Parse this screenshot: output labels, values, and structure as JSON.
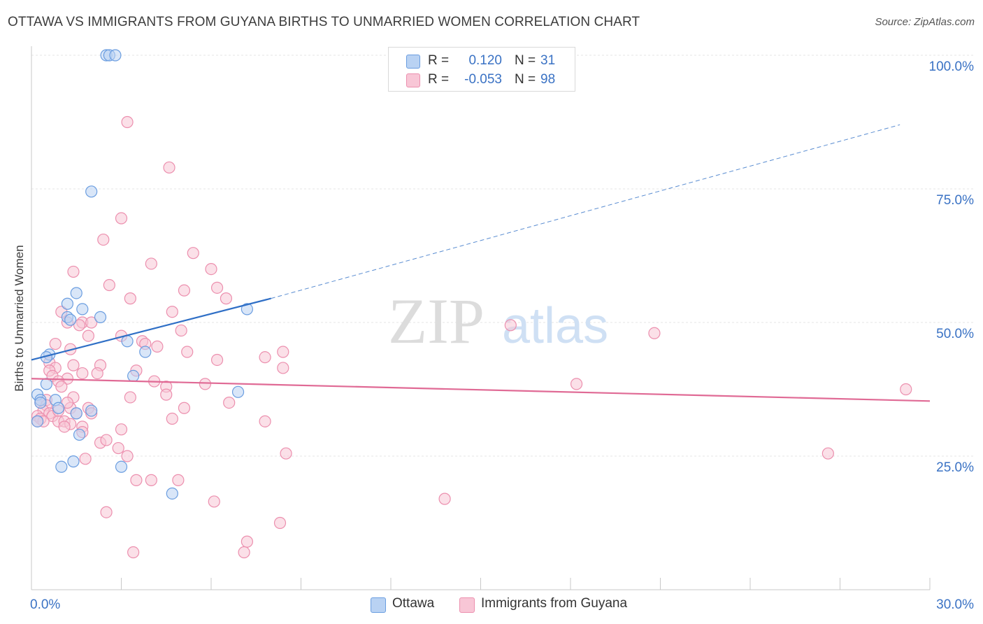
{
  "chart_title": "OTTAWA VS IMMIGRANTS FROM GUYANA BIRTHS TO UNMARRIED WOMEN CORRELATION CHART",
  "source_text": "Source: ZipAtlas.com",
  "watermark": "ZIPatlas",
  "legend_top": {
    "rows": [
      {
        "r_label": "R =",
        "r_value": "0.120",
        "n_label": "N =",
        "n_value": "31"
      },
      {
        "r_label": "R =",
        "r_value": "-0.053",
        "n_label": "N =",
        "n_value": "98"
      }
    ]
  },
  "legend_bottom": [
    "Ottawa",
    "Immigrants from Guyana"
  ],
  "colors": {
    "ottawa_fill": "#b9d2f3",
    "ottawa_stroke": "#6a9de0",
    "ottawa_line": "#2f6fc6",
    "guyana_fill": "#f8c6d6",
    "guyana_stroke": "#ec8fae",
    "guyana_line": "#e06a95",
    "tick_label": "#3a72c4",
    "grid": "#e4e4e4"
  },
  "chart_data": {
    "type": "scatter",
    "title": "OTTAWA VS IMMIGRANTS FROM GUYANA BIRTHS TO UNMARRIED WOMEN CORRELATION CHART",
    "xlabel": "",
    "ylabel": "Births to Unmarried Women",
    "xlim": [
      0,
      30
    ],
    "ylim": [
      0,
      100
    ],
    "x_tick_labels": [
      "0.0%",
      "30.0%"
    ],
    "y_ticks": [
      25,
      50,
      75,
      100
    ],
    "y_tick_labels": [
      "25.0%",
      "50.0%",
      "75.0%",
      "100.0%"
    ],
    "grid": true,
    "legend_position": "top-center",
    "series": [
      {
        "name": "Ottawa",
        "R": 0.12,
        "N": 31,
        "trend": {
          "x0": 0,
          "y0": 43.0,
          "x1": 8.0,
          "y1": 54.5,
          "dashed_to_x": 29.0,
          "dashed_to_y": 87.0
        },
        "points": [
          [
            2.5,
            100
          ],
          [
            2.6,
            100
          ],
          [
            2.8,
            100
          ],
          [
            2.0,
            74.5
          ],
          [
            1.5,
            55.5
          ],
          [
            1.2,
            53.5
          ],
          [
            1.7,
            52.5
          ],
          [
            1.2,
            51.0
          ],
          [
            1.3,
            50.5
          ],
          [
            2.3,
            51.0
          ],
          [
            3.2,
            46.5
          ],
          [
            3.8,
            44.5
          ],
          [
            0.6,
            44.0
          ],
          [
            0.5,
            43.5
          ],
          [
            3.4,
            40.0
          ],
          [
            0.5,
            38.5
          ],
          [
            7.2,
            52.5
          ],
          [
            6.9,
            37.0
          ],
          [
            0.2,
            36.5
          ],
          [
            0.3,
            35.5
          ],
          [
            0.8,
            35.5
          ],
          [
            0.3,
            35.0
          ],
          [
            0.9,
            34.0
          ],
          [
            1.5,
            33.0
          ],
          [
            2.0,
            33.5
          ],
          [
            0.2,
            31.5
          ],
          [
            1.6,
            29.0
          ],
          [
            1.4,
            24.0
          ],
          [
            1.0,
            23.0
          ],
          [
            3.0,
            23.0
          ],
          [
            4.7,
            18.0
          ]
        ]
      },
      {
        "name": "Immigrants from Guyana",
        "R": -0.053,
        "N": 98,
        "trend": {
          "x0": 0,
          "y0": 39.5,
          "x1": 30,
          "y1": 35.3
        },
        "points": [
          [
            3.2,
            87.5
          ],
          [
            4.6,
            79.0
          ],
          [
            3.0,
            69.5
          ],
          [
            2.4,
            65.5
          ],
          [
            5.4,
            63.0
          ],
          [
            4.0,
            61.0
          ],
          [
            6.0,
            60.0
          ],
          [
            1.4,
            59.5
          ],
          [
            2.6,
            57.0
          ],
          [
            5.1,
            56.0
          ],
          [
            6.2,
            56.5
          ],
          [
            3.3,
            54.5
          ],
          [
            6.5,
            54.5
          ],
          [
            1.0,
            52.0
          ],
          [
            4.7,
            52.0
          ],
          [
            1.2,
            50.0
          ],
          [
            1.7,
            50.0
          ],
          [
            2.0,
            50.0
          ],
          [
            1.6,
            49.5
          ],
          [
            16.0,
            49.5
          ],
          [
            5.0,
            48.5
          ],
          [
            20.8,
            48.0
          ],
          [
            3.0,
            47.5
          ],
          [
            1.9,
            47.5
          ],
          [
            3.7,
            46.5
          ],
          [
            3.8,
            46.0
          ],
          [
            4.2,
            45.5
          ],
          [
            0.8,
            46.0
          ],
          [
            1.3,
            45.0
          ],
          [
            5.2,
            44.5
          ],
          [
            8.4,
            44.5
          ],
          [
            7.8,
            43.5
          ],
          [
            0.6,
            42.5
          ],
          [
            8.4,
            41.5
          ],
          [
            0.8,
            41.5
          ],
          [
            2.3,
            42.0
          ],
          [
            0.6,
            41.0
          ],
          [
            3.5,
            41.0
          ],
          [
            2.2,
            40.5
          ],
          [
            1.7,
            40.5
          ],
          [
            0.7,
            40.0
          ],
          [
            1.2,
            39.5
          ],
          [
            4.1,
            39.0
          ],
          [
            0.9,
            39.0
          ],
          [
            5.8,
            38.5
          ],
          [
            18.2,
            38.5
          ],
          [
            4.5,
            38.0
          ],
          [
            1.0,
            38.0
          ],
          [
            29.2,
            37.5
          ],
          [
            4.5,
            36.5
          ],
          [
            3.3,
            36.0
          ],
          [
            1.4,
            36.0
          ],
          [
            0.5,
            35.5
          ],
          [
            0.3,
            35.0
          ],
          [
            6.6,
            35.0
          ],
          [
            0.5,
            34.5
          ],
          [
            1.9,
            34.0
          ],
          [
            1.3,
            34.0
          ],
          [
            0.4,
            33.5
          ],
          [
            0.6,
            33.0
          ],
          [
            1.5,
            33.0
          ],
          [
            2.0,
            33.0
          ],
          [
            0.7,
            32.5
          ],
          [
            0.2,
            32.5
          ],
          [
            4.7,
            32.0
          ],
          [
            0.3,
            32.0
          ],
          [
            0.4,
            31.5
          ],
          [
            0.9,
            31.5
          ],
          [
            1.1,
            31.5
          ],
          [
            7.8,
            31.5
          ],
          [
            1.3,
            31.0
          ],
          [
            1.7,
            30.5
          ],
          [
            1.1,
            30.5
          ],
          [
            0.2,
            31.5
          ],
          [
            3.0,
            30.0
          ],
          [
            1.7,
            29.5
          ],
          [
            2.3,
            27.5
          ],
          [
            2.9,
            26.5
          ],
          [
            3.2,
            25.0
          ],
          [
            8.5,
            25.5
          ],
          [
            26.6,
            25.5
          ],
          [
            1.8,
            24.5
          ],
          [
            3.5,
            20.5
          ],
          [
            4.0,
            20.5
          ],
          [
            4.9,
            20.5
          ],
          [
            6.1,
            16.5
          ],
          [
            13.8,
            17.0
          ],
          [
            2.5,
            14.5
          ],
          [
            8.3,
            12.5
          ],
          [
            7.2,
            9.0
          ],
          [
            3.4,
            7.0
          ],
          [
            7.1,
            7.0
          ],
          [
            0.9,
            33.5
          ],
          [
            2.5,
            28.0
          ],
          [
            1.4,
            42.0
          ],
          [
            5.1,
            34.0
          ],
          [
            6.2,
            43.0
          ],
          [
            1.2,
            35.0
          ]
        ]
      }
    ]
  }
}
